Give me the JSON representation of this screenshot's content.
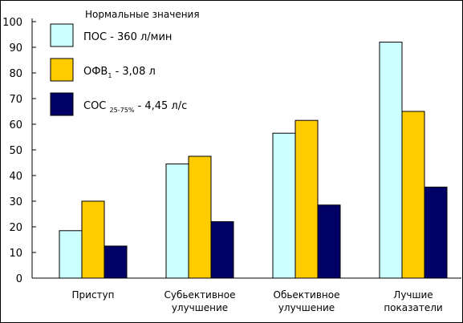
{
  "chart_data": {
    "type": "bar",
    "legend_title": "Нормальные значения",
    "legend_position": "top-left",
    "categories": [
      [
        "Приступ"
      ],
      [
        "Субьективное",
        "улучшение"
      ],
      [
        "Обьективное",
        "улучшение"
      ],
      [
        "Лучшие",
        "показатели"
      ]
    ],
    "series": [
      {
        "name": "ПОС - 360 л/мин",
        "label": {
          "text": "ПОС - 360 л/мин"
        },
        "color": "#ccffff",
        "values": [
          18.5,
          44.5,
          56.5,
          92
        ]
      },
      {
        "name": "ОФВ1 - 3,08 л",
        "label": {
          "main": "ОФВ",
          "sub": "1",
          "rest": " - 3,08 л"
        },
        "color": "#ffcc00",
        "values": [
          30,
          47.5,
          61.5,
          65
        ]
      },
      {
        "name": "СОС25-75% - 4,45 л/с",
        "label": {
          "main": "СОС ",
          "sub": "25-75%",
          "rest": " - 4,45 л/с"
        },
        "color": "#000066",
        "values": [
          12.5,
          22,
          28.5,
          35.5
        ]
      }
    ],
    "yticks": [
      0,
      10,
      20,
      30,
      40,
      50,
      60,
      70,
      80,
      90,
      100
    ],
    "ylim": [
      0,
      100
    ],
    "grid": false
  }
}
